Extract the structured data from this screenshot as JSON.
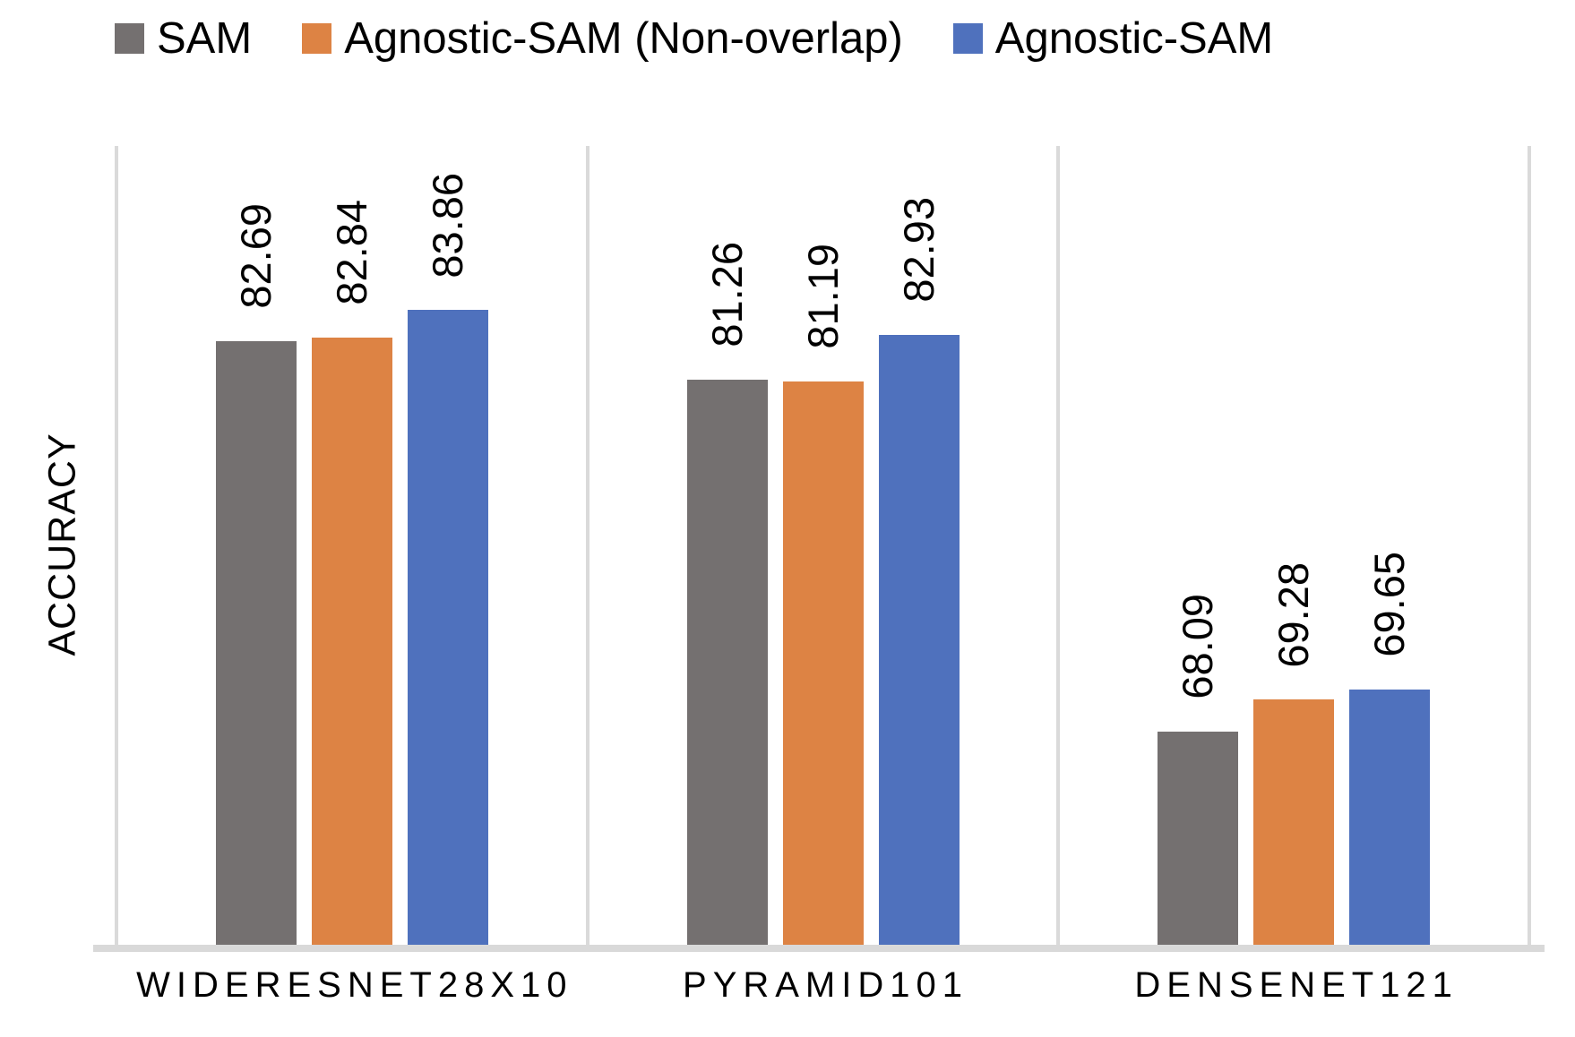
{
  "chart_data": {
    "type": "bar",
    "title": "",
    "ylabel": "ACCURACY",
    "xlabel": "",
    "ylim": [
      60,
      90
    ],
    "y_axis_ticks_visible": false,
    "grid": "vertical category separators only",
    "legend_position": "top",
    "value_labels": "rotated 90deg above each bar, 2 decimals",
    "categories": [
      "WIDERESNET28X10",
      "PYRAMID101",
      "DENSENET121"
    ],
    "series": [
      {
        "name": "SAM",
        "color": "#747070",
        "values": [
          82.69,
          81.26,
          68.09
        ]
      },
      {
        "name": "Agnostic-SAM (Non-overlap)",
        "color": "#DD8344",
        "values": [
          82.84,
          81.19,
          69.28
        ]
      },
      {
        "name": "Agnostic-SAM",
        "color": "#4F71BD",
        "values": [
          83.86,
          82.93,
          69.65
        ]
      }
    ],
    "axis_line_color": "#DADADA",
    "text_color": "#000000",
    "background_color": "#FFFFFF"
  }
}
